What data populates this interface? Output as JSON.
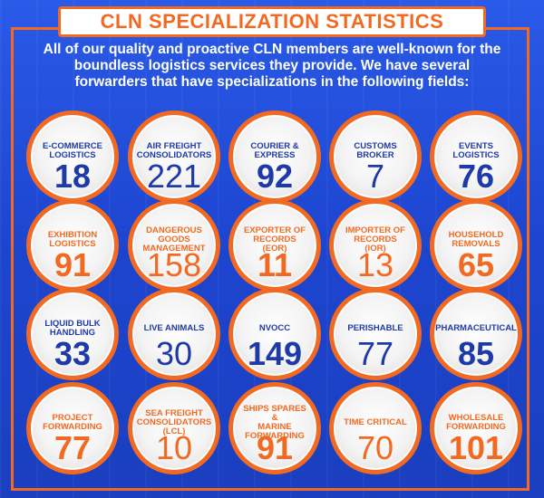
{
  "title": "CLN SPECIALIZATION STATISTICS",
  "intro": "All of our quality and proactive CLN members are well-known for the boundless logistics services they provide. We have several forwarders that have specializations in the following fields:",
  "stats": [
    {
      "label": "E-COMMERCE\nLOGISTICS",
      "value": "18",
      "color": "blue",
      "weight": "bold"
    },
    {
      "label": "AIR FREIGHT\nCONSOLIDATORS",
      "value": "221",
      "color": "blue",
      "weight": "light"
    },
    {
      "label": "COURIER &\nEXPRESS",
      "value": "92",
      "color": "blue",
      "weight": "bold"
    },
    {
      "label": "CUSTOMS\nBROKER",
      "value": "7",
      "color": "blue",
      "weight": "light"
    },
    {
      "label": "EVENTS\nLOGISTICS",
      "value": "76",
      "color": "blue",
      "weight": "bold"
    },
    {
      "label": "EXHIBITION\nLOGISTICS",
      "value": "91",
      "color": "orange",
      "weight": "bold"
    },
    {
      "label": "DANGEROUS\nGOODS\nMANAGEMENT",
      "value": "158",
      "color": "orange",
      "weight": "light"
    },
    {
      "label": "EXPORTER OF\nRECORDS (EOR)",
      "value": "11",
      "color": "orange",
      "weight": "bold"
    },
    {
      "label": "IMPORTER OF\nRECORDS (IOR)",
      "value": "13",
      "color": "orange",
      "weight": "light"
    },
    {
      "label": "HOUSEHOLD\nREMOVALS",
      "value": "65",
      "color": "orange",
      "weight": "bold"
    },
    {
      "label": "LIQUID BULK\nHANDLING",
      "value": "33",
      "color": "blue",
      "weight": "bold"
    },
    {
      "label": "LIVE ANIMALS",
      "value": "30",
      "color": "blue",
      "weight": "light"
    },
    {
      "label": "NVOCC",
      "value": "149",
      "color": "blue",
      "weight": "bold"
    },
    {
      "label": "PERISHABLE",
      "value": "77",
      "color": "blue",
      "weight": "light"
    },
    {
      "label": "PHARMACEUTICAL",
      "value": "85",
      "color": "blue",
      "weight": "bold"
    },
    {
      "label": "PROJECT\nFORWARDING",
      "value": "77",
      "color": "orange",
      "weight": "bold"
    },
    {
      "label": "SEA FREIGHT\nCONSOLIDATORS\n(LCL)",
      "value": "10",
      "color": "orange",
      "weight": "light"
    },
    {
      "label": "SHIPS SPARES &\nMARINE\nFORWARDING",
      "value": "91",
      "color": "orange",
      "weight": "bold"
    },
    {
      "label": "TIME CRITICAL",
      "value": "70",
      "color": "orange",
      "weight": "light"
    },
    {
      "label": "WHOLESALE\nFORWARDING",
      "value": "101",
      "color": "orange",
      "weight": "bold"
    }
  ],
  "colors": {
    "accent": "#f26a21",
    "blue_text": "#1e3aa8",
    "background": "#1f4bd6"
  }
}
